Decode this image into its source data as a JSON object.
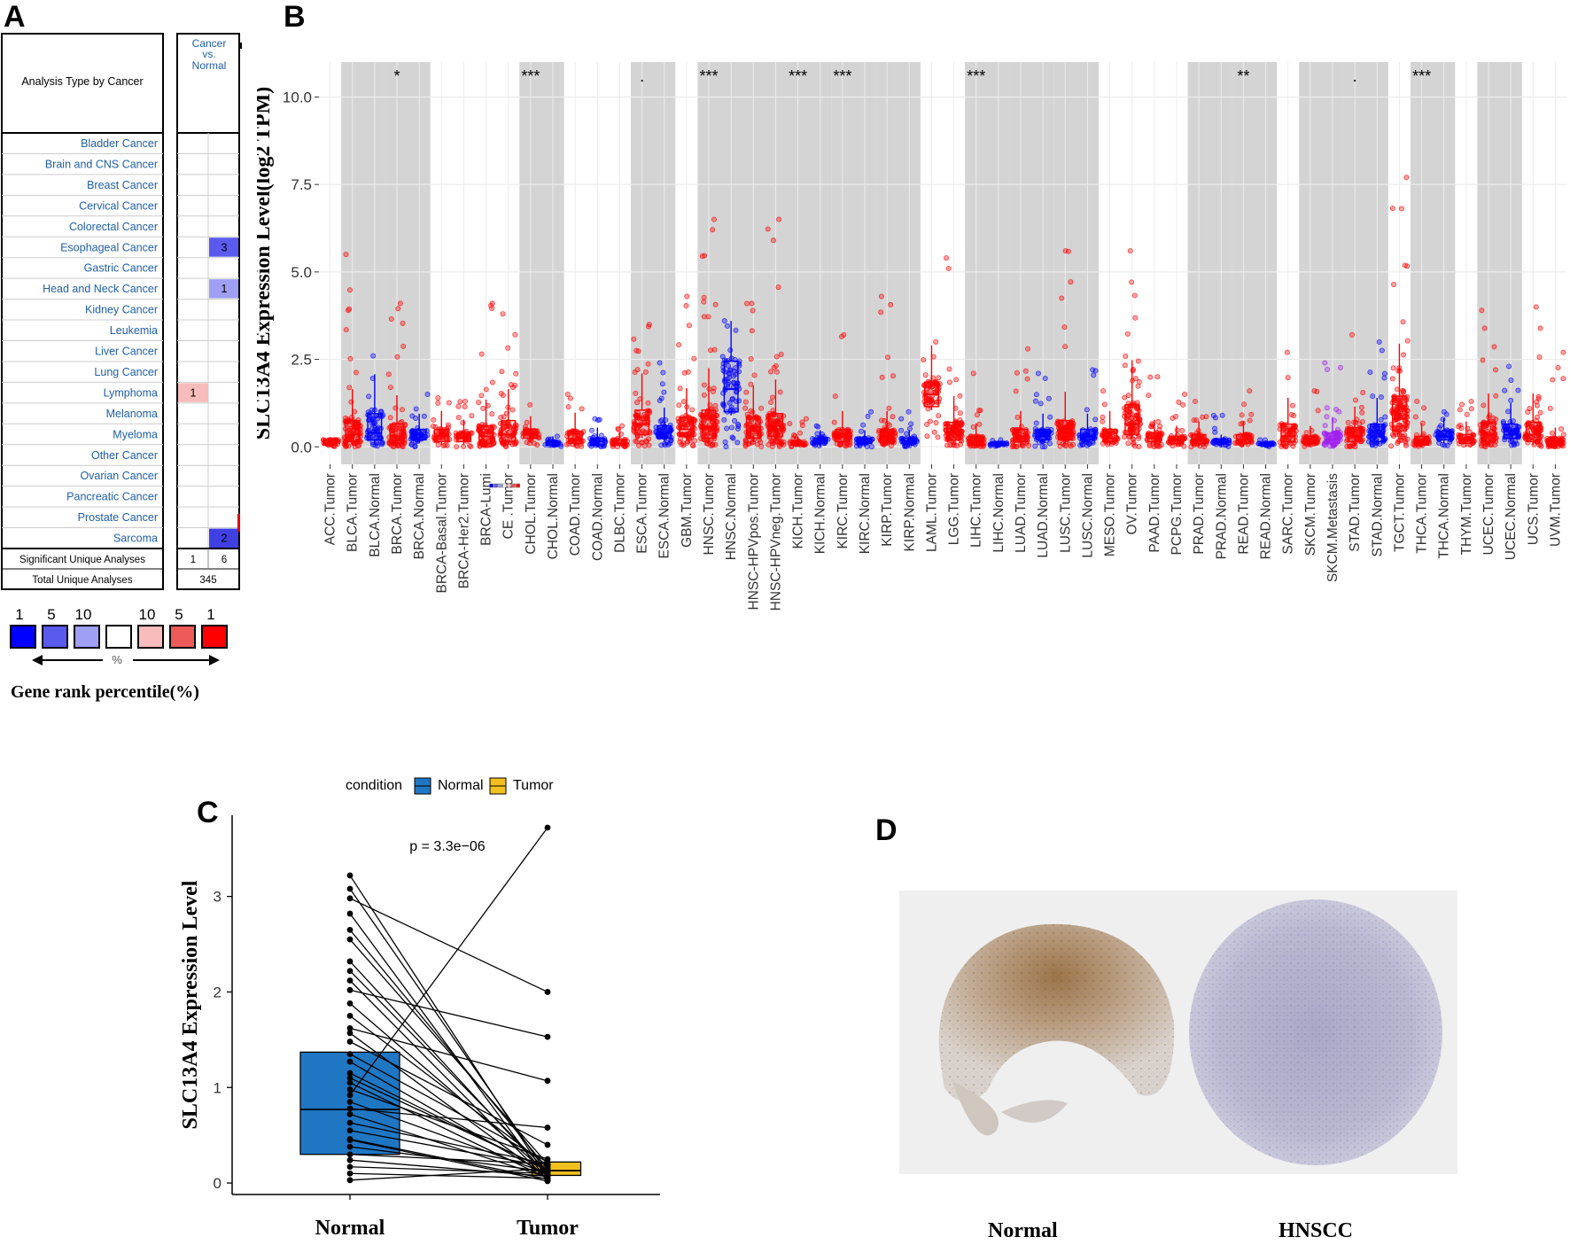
{
  "panels": {
    "a": {
      "letter": "A"
    },
    "b": {
      "letter": "B"
    },
    "c": {
      "letter": "C"
    },
    "d": {
      "letter": "D"
    }
  },
  "oncomine": {
    "header_left": "Analysis Type by Cancer",
    "header_right": [
      "Cancer",
      "vs.",
      "Normal"
    ],
    "rows": [
      {
        "name": "Bladder Cancer",
        "left": null,
        "right": null
      },
      {
        "name": "Brain and CNS Cancer",
        "left": null,
        "right": null
      },
      {
        "name": "Breast Cancer",
        "left": null,
        "right": null
      },
      {
        "name": "Cervical Cancer",
        "left": null,
        "right": null
      },
      {
        "name": "Colorectal Cancer",
        "left": null,
        "right": null
      },
      {
        "name": "Esophageal Cancer",
        "left": null,
        "right": "3"
      },
      {
        "name": "Gastric Cancer",
        "left": null,
        "right": null
      },
      {
        "name": "Head and Neck Cancer",
        "left": null,
        "right": "1"
      },
      {
        "name": "Kidney Cancer",
        "left": null,
        "right": null
      },
      {
        "name": "Leukemia",
        "left": null,
        "right": null
      },
      {
        "name": "Liver Cancer",
        "left": null,
        "right": null
      },
      {
        "name": "Lung Cancer",
        "left": null,
        "right": null
      },
      {
        "name": "Lymphoma",
        "left": "1",
        "right": null
      },
      {
        "name": "Melanoma",
        "left": null,
        "right": null
      },
      {
        "name": "Myeloma",
        "left": null,
        "right": null
      },
      {
        "name": "Other Cancer",
        "left": null,
        "right": null
      },
      {
        "name": "Ovarian Cancer",
        "left": null,
        "right": null
      },
      {
        "name": "Pancreatic Cancer",
        "left": null,
        "right": null
      },
      {
        "name": "Prostate Cancer",
        "left": null,
        "right": null
      },
      {
        "name": "Sarcoma",
        "left": null,
        "right": "2"
      }
    ],
    "cell_colors": {
      "Esophageal Cancer": "#5a5aee",
      "Head and Neck Cancer": "#9f9ff5",
      "Lymphoma": "#f9bcbc",
      "Sarcoma": "#3f3fe3"
    },
    "significant_label": "Significant Unique Analyses",
    "significant_values": [
      "1",
      "6"
    ],
    "total_label": "Total Unique Analyses",
    "total_value": "345",
    "legend": {
      "numbers": [
        "1",
        "5",
        "10",
        "10",
        "5",
        "1"
      ],
      "colors": [
        "#0000ff",
        "#5a5aee",
        "#9f9ff5",
        "#ffffff",
        "#f9bcbc",
        "#ee5a5a",
        "#ff0000"
      ],
      "percent": "%",
      "title": "Gene rank percentile(%)"
    }
  },
  "chart_data": [
    {
      "type": "box",
      "panel": "B",
      "ylabel": "SLC13A4 Expression Level(log2 TPM)",
      "ylim": [
        -0.5,
        11.0
      ],
      "yticks": [
        "0.0",
        "2.5",
        "5.0",
        "7.5",
        "10.0"
      ],
      "ytick_values": [
        0,
        2.5,
        5,
        7.5,
        10
      ],
      "categories": [
        "ACC.Tumor",
        "BLCA.Tumor",
        "BLCA.Normal",
        "BRCA.Tumor",
        "BRCA.Normal",
        "BRCA-Basal.Tumor",
        "BRCA-Her2.Tumor",
        "BRCA-LumA.Tumor",
        "CESC.Tumor",
        "CHOL.Tumor",
        "CHOL.Normal",
        "COAD.Tumor",
        "COAD.Normal",
        "DLBC.Tumor",
        "ESCA.Tumor",
        "ESCA.Normal",
        "GBM.Tumor",
        "HNSC.Tumor",
        "HNSC.Normal",
        "HNSC-HPVpos.Tumor",
        "HNSC-HPVneg.Tumor",
        "KICH.Tumor",
        "KICH.Normal",
        "KIRC.Tumor",
        "KIRC.Normal",
        "KIRP.Tumor",
        "KIRP.Normal",
        "LAML.Tumor",
        "LGG.Tumor",
        "LIHC.Tumor",
        "LIHC.Normal",
        "LUAD.Tumor",
        "LUAD.Normal",
        "LUSC.Tumor",
        "LUSC.Normal",
        "MESO.Tumor",
        "OV.Tumor",
        "PAAD.Tumor",
        "PCPG.Tumor",
        "PRAD.Tumor",
        "PRAD.Normal",
        "READ.Tumor",
        "READ.Normal",
        "SARC.Tumor",
        "SKCM.Tumor",
        "SKCM.Metastasis",
        "STAD.Tumor",
        "STAD.Normal",
        "TGCT.Tumor",
        "THCA.Tumor",
        "THCA.Normal",
        "THYM.Tumor",
        "UCEC.Tumor",
        "UCEC.Normal",
        "UCS.Tumor",
        "UVM.Tumor"
      ],
      "tick_labels": [
        "ACC.Tumor",
        "BLCA.Tumor",
        "BLCA.Normal",
        "BRCA.Tumor",
        "BRCA.Normal",
        "BRCA-Basal.Tumor",
        "BRCA-Her2.Tumor",
        "BRCA-Lumi",
        "CE .Tumor",
        "CHOL.Tumor",
        "CHOL.Normal",
        "COAD.Tumor",
        "COAD.Normal",
        "DLBC.Tumor",
        "ESCA.Tumor",
        "ESCA.Normal",
        "GBM.Tumor",
        "HNSC.Tumor",
        "HNSC.Normal",
        "HNSC-HPVpos.Tumor",
        "HNSC-HPVneg.Tumor",
        "KICH.Tumor",
        "KICH.Normal",
        "KIRC.Tumor",
        "KIRC.Normal",
        "KIRP.Tumor",
        "KIRP.Normal",
        "LAML.Tumor",
        "LGG.Tumor",
        "LIHC.Tumor",
        "LIHC.Normal",
        "LUAD.Tumor",
        "LUAD.Normal",
        "LUSC.Tumor",
        "LUSC.Normal",
        "MESO.Tumor",
        "OV.Tumor",
        "PAAD.Tumor",
        "PCPG.Tumor",
        "PRAD.Tumor",
        "PRAD.Normal",
        "READ.Tumor",
        "READ.Normal",
        "SARC.Tumor",
        "SKCM.Tumor",
        "SKCM.Metastasis",
        "STAD.Tumor",
        "STAD.Normal",
        "TGCT.Tumor",
        "THCA.Tumor",
        "THCA.Normal",
        "THYM.Tumor",
        "UCEC.Tumor",
        "UCEC.Normal",
        "UCS.Tumor",
        "UVM.Tumor"
      ],
      "group_colors": {
        "Tumor": "#ff0000",
        "Normal": "#0000ff",
        "Metastasis": "#a020f0"
      },
      "box_stats": [
        [
          0.05,
          0.1,
          0.2
        ],
        [
          0.15,
          0.35,
          0.75
        ],
        [
          0.2,
          0.4,
          0.95
        ],
        [
          0.1,
          0.3,
          0.65
        ],
        [
          0.2,
          0.35,
          0.5
        ],
        [
          0.15,
          0.3,
          0.5
        ],
        [
          0.15,
          0.25,
          0.4
        ],
        [
          0.1,
          0.3,
          0.6
        ],
        [
          0.15,
          0.35,
          0.75
        ],
        [
          0.25,
          0.35,
          0.5
        ],
        [
          0.05,
          0.1,
          0.15
        ],
        [
          0.1,
          0.2,
          0.45
        ],
        [
          0.05,
          0.15,
          0.25
        ],
        [
          0.05,
          0.1,
          0.2
        ],
        [
          0.35,
          0.65,
          1.05
        ],
        [
          0.25,
          0.4,
          0.6
        ],
        [
          0.3,
          0.5,
          0.85
        ],
        [
          0.25,
          0.55,
          1.05
        ],
        [
          1.0,
          1.65,
          2.45
        ],
        [
          0.25,
          0.45,
          0.85
        ],
        [
          0.3,
          0.6,
          0.95
        ],
        [
          0.05,
          0.1,
          0.15
        ],
        [
          0.1,
          0.15,
          0.25
        ],
        [
          0.15,
          0.3,
          0.5
        ],
        [
          0.1,
          0.15,
          0.25
        ],
        [
          0.15,
          0.3,
          0.5
        ],
        [
          0.1,
          0.15,
          0.25
        ],
        [
          1.15,
          1.5,
          1.85
        ],
        [
          0.2,
          0.4,
          0.7
        ],
        [
          0.05,
          0.15,
          0.3
        ],
        [
          0.05,
          0.05,
          0.1
        ],
        [
          0.15,
          0.3,
          0.5
        ],
        [
          0.2,
          0.3,
          0.5
        ],
        [
          0.2,
          0.4,
          0.75
        ],
        [
          0.2,
          0.3,
          0.5
        ],
        [
          0.15,
          0.25,
          0.5
        ],
        [
          0.35,
          0.65,
          1.2
        ],
        [
          0.15,
          0.25,
          0.4
        ],
        [
          0.1,
          0.2,
          0.3
        ],
        [
          0.1,
          0.2,
          0.35
        ],
        [
          0.1,
          0.15,
          0.2
        ],
        [
          0.1,
          0.2,
          0.35
        ],
        [
          0.05,
          0.05,
          0.1
        ],
        [
          0.15,
          0.3,
          0.65
        ],
        [
          0.1,
          0.15,
          0.3
        ],
        [
          0.1,
          0.2,
          0.4
        ],
        [
          0.15,
          0.3,
          0.55
        ],
        [
          0.15,
          0.3,
          0.65
        ],
        [
          0.45,
          0.8,
          1.45
        ],
        [
          0.05,
          0.15,
          0.3
        ],
        [
          0.2,
          0.3,
          0.45
        ],
        [
          0.1,
          0.2,
          0.35
        ],
        [
          0.15,
          0.35,
          0.7
        ],
        [
          0.25,
          0.35,
          0.65
        ],
        [
          0.15,
          0.35,
          0.7
        ],
        [
          0.05,
          0.15,
          0.25
        ]
      ],
      "max_points": [
        0.2,
        5.5,
        2.6,
        4.1,
        1.5,
        1.4,
        1.3,
        4.1,
        3.8,
        1.2,
        0.3,
        1.5,
        0.8,
        0.6,
        3.5,
        2.4,
        4.3,
        6.5,
        3.6,
        4.1,
        6.5,
        0.8,
        0.6,
        3.2,
        1.0,
        4.3,
        1.0,
        3.0,
        5.4,
        2.1,
        0.2,
        2.8,
        2.1,
        5.6,
        2.2,
        1.6,
        5.6,
        2.0,
        1.5,
        1.3,
        0.9,
        1.6,
        0.2,
        2.7,
        1.6,
        2.4,
        3.2,
        3.0,
        7.7,
        1.3,
        1.0,
        1.3,
        3.9,
        2.3,
        4.0,
        2.7
      ],
      "shaded_pairs": [
        [
          1,
          2
        ],
        [
          3,
          4
        ],
        [
          9,
          10
        ],
        [
          14,
          15
        ],
        [
          17,
          20
        ],
        [
          21,
          22
        ],
        [
          23,
          24
        ],
        [
          25,
          26
        ],
        [
          29,
          30
        ],
        [
          31,
          32
        ],
        [
          33,
          34
        ],
        [
          39,
          40
        ],
        [
          41,
          42
        ],
        [
          44,
          45
        ],
        [
          46,
          47
        ],
        [
          49,
          50
        ],
        [
          52,
          53
        ]
      ],
      "annotations": [
        {
          "category": "BRCA.Tumor",
          "text": "*"
        },
        {
          "category": "CHOL.Tumor",
          "text": "***"
        },
        {
          "category": "ESCA.Tumor",
          "text": "."
        },
        {
          "category": "HNSC.Tumor",
          "text": "***"
        },
        {
          "category": "KICH.Tumor",
          "text": "***"
        },
        {
          "category": "KIRC.Tumor",
          "text": "***"
        },
        {
          "category": "LIHC.Tumor",
          "text": "***"
        },
        {
          "category": "READ.Tumor",
          "text": "**"
        },
        {
          "category": "STAD.Tumor",
          "text": "."
        },
        {
          "category": "THCA.Tumor",
          "text": "***"
        }
      ]
    },
    {
      "type": "paired-box",
      "panel": "C",
      "ylabel": "SLC13A4 Expression Level",
      "categories": [
        "Normal",
        "Tumor"
      ],
      "ylim": [
        -0.12,
        3.85
      ],
      "yticks": [
        "0",
        "1",
        "2",
        "3"
      ],
      "ytick_values": [
        0,
        1,
        2,
        3
      ],
      "pvalue": "p = 3.3e−06",
      "legend_title": "condition",
      "legend_entries": [
        "Normal",
        "Tumor"
      ],
      "colors": {
        "Normal": "#1f77c4",
        "Tumor": "#f2c01e"
      },
      "box_normal": {
        "q1": 0.3,
        "median": 0.77,
        "q3": 1.37
      },
      "box_tumor": {
        "q1": 0.08,
        "median": 0.13,
        "q3": 0.22
      },
      "pairs": [
        [
          3.22,
          0.05
        ],
        [
          3.08,
          0.1
        ],
        [
          2.98,
          2.0
        ],
        [
          2.82,
          0.02
        ],
        [
          2.65,
          0.15
        ],
        [
          2.55,
          0.2
        ],
        [
          2.32,
          0.08
        ],
        [
          2.22,
          0.12
        ],
        [
          2.12,
          0.03
        ],
        [
          2.02,
          1.53
        ],
        [
          1.88,
          0.1
        ],
        [
          1.75,
          0.18
        ],
        [
          1.62,
          1.07
        ],
        [
          1.57,
          0.05
        ],
        [
          1.48,
          0.4
        ],
        [
          1.35,
          0.22
        ],
        [
          1.27,
          0.08
        ],
        [
          1.15,
          0.13
        ],
        [
          1.05,
          0.05
        ],
        [
          0.98,
          0.25
        ],
        [
          0.92,
          3.72
        ],
        [
          0.85,
          0.1
        ],
        [
          0.78,
          0.58
        ],
        [
          0.72,
          0.06
        ],
        [
          0.63,
          0.2
        ],
        [
          0.55,
          0.17
        ],
        [
          0.46,
          0.04
        ],
        [
          0.38,
          0.12
        ],
        [
          0.3,
          0.2
        ],
        [
          0.24,
          0.07
        ],
        [
          0.17,
          0.1
        ],
        [
          0.1,
          0.05
        ],
        [
          0.03,
          0.15
        ],
        [
          0.45,
          0.02
        ],
        [
          1.1,
          0.14
        ]
      ]
    }
  ],
  "ihc": {
    "label_left": "Normal",
    "label_right": "HNSCC"
  }
}
